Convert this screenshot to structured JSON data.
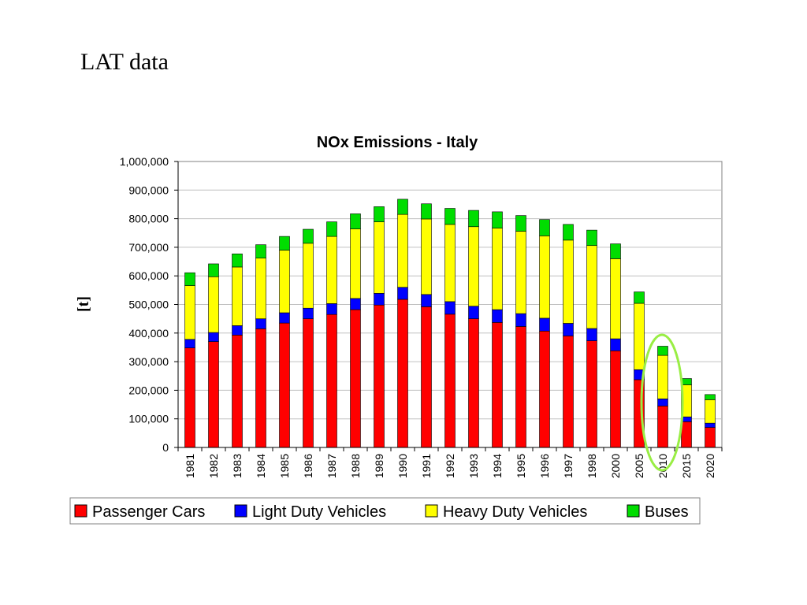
{
  "slide": {
    "title": "LAT data"
  },
  "chart_data": {
    "type": "bar",
    "stacked": true,
    "title": "NOx Emissions - Italy",
    "xlabel": "",
    "ylabel": "[t]",
    "ylim": [
      0,
      1000000
    ],
    "yticks": [
      0,
      100000,
      200000,
      300000,
      400000,
      500000,
      600000,
      700000,
      800000,
      900000,
      1000000
    ],
    "ytick_labels": [
      "0",
      "100,000",
      "200,000",
      "300,000",
      "400,000",
      "500,000",
      "600,000",
      "700,000",
      "800,000",
      "900,000",
      "1,000,000"
    ],
    "grid": true,
    "legend_position": "bottom",
    "categories": [
      "1981",
      "1982",
      "1983",
      "1984",
      "1985",
      "1986",
      "1987",
      "1988",
      "1989",
      "1990",
      "1991",
      "1992",
      "1993",
      "1994",
      "1995",
      "1996",
      "1997",
      "1998",
      "2000",
      "2005",
      "2010",
      "2015",
      "2020"
    ],
    "series": [
      {
        "name": "Passenger Cars",
        "color": "#ff0000",
        "values": [
          348000,
          370000,
          393000,
          415000,
          435000,
          450000,
          465000,
          482000,
          498000,
          518000,
          492000,
          466000,
          450000,
          437000,
          423000,
          407000,
          390000,
          373000,
          338000,
          237000,
          145000,
          90000,
          70000
        ]
      },
      {
        "name": "Light Duty Vehicles",
        "color": "#0000ff",
        "values": [
          30000,
          32000,
          33000,
          35000,
          36000,
          37000,
          38000,
          39000,
          41000,
          42000,
          43000,
          44000,
          44000,
          45000,
          45000,
          45000,
          44000,
          43000,
          42000,
          35000,
          25000,
          17000,
          15000
        ]
      },
      {
        "name": "Heavy Duty Vehicles",
        "color": "#ffff00",
        "values": [
          188000,
          195000,
          205000,
          212000,
          219000,
          227000,
          235000,
          243000,
          250000,
          255000,
          264000,
          270000,
          278000,
          285000,
          288000,
          288000,
          291000,
          290000,
          280000,
          232000,
          152000,
          112000,
          82000
        ]
      },
      {
        "name": "Buses",
        "color": "#00dd00",
        "values": [
          45000,
          45000,
          46000,
          47000,
          48000,
          49000,
          51000,
          53000,
          53000,
          53000,
          53000,
          56000,
          57000,
          57000,
          55000,
          57000,
          55000,
          54000,
          52000,
          40000,
          32000,
          22000,
          18000
        ]
      }
    ],
    "annotations": [
      {
        "type": "ellipse",
        "target_category": "2010",
        "color": "#99ee44"
      }
    ]
  }
}
